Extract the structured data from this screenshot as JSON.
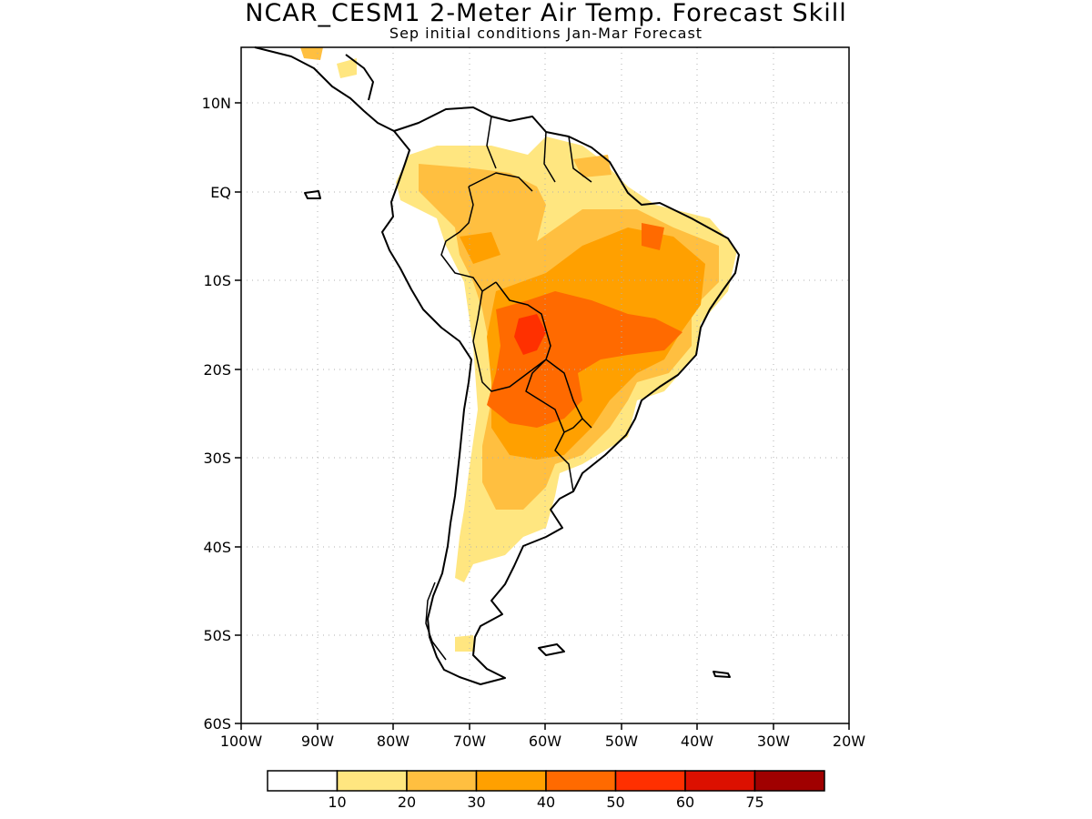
{
  "title": "NCAR_CESM1 2-Meter Air Temp. Forecast Skill",
  "subtitle": "Sep initial conditions  Jan-Mar Forecast",
  "lat_labels": [
    "10N",
    "EQ",
    "10S",
    "20S",
    "30S",
    "40S",
    "50S",
    "60S"
  ],
  "lon_labels": [
    "100W",
    "90W",
    "80W",
    "70W",
    "60W",
    "50W",
    "40W",
    "30W",
    "20W"
  ],
  "legend": {
    "labels": [
      "10",
      "20",
      "30",
      "40",
      "50",
      "60",
      "75"
    ],
    "colors": [
      "#ffffff",
      "#ffe680",
      "#ffbf40",
      "#ffa000",
      "#ff6a00",
      "#ff3000",
      "#dc1000",
      "#a00000"
    ]
  },
  "map_colors": {
    "land_outline": "#000000",
    "grid": "#b0b0b0"
  }
}
